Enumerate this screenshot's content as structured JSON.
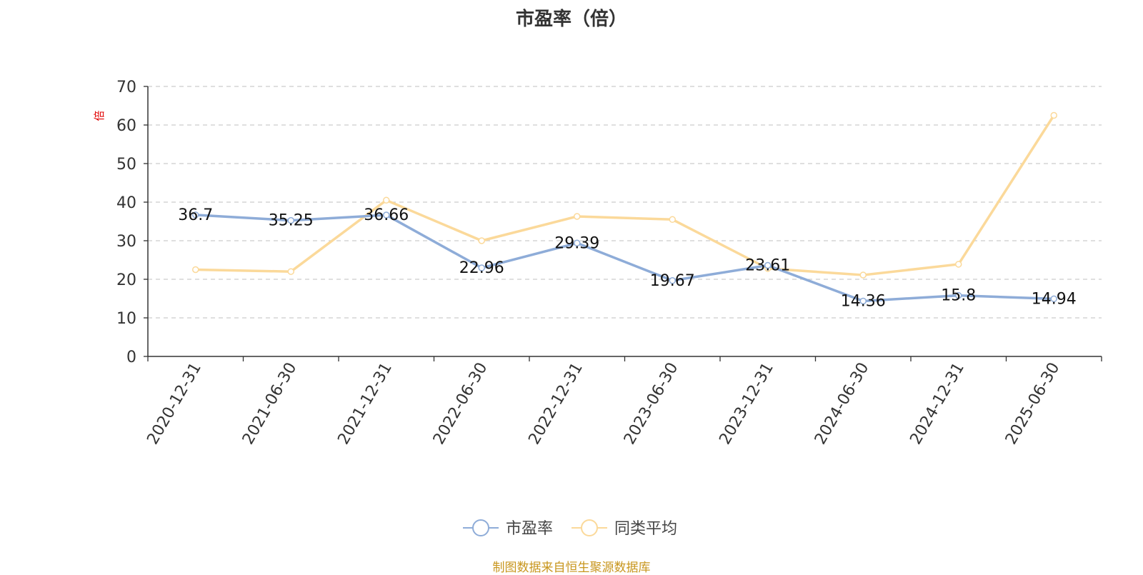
{
  "title": "市盈率（倍）",
  "source_note": "制图数据来自恒生聚源数据库",
  "chart_data": {
    "type": "line",
    "title": "市盈率（倍）",
    "ylabel": "倍",
    "xlabel": "",
    "ylim": [
      0,
      70
    ],
    "yticks": [
      0,
      10,
      20,
      30,
      40,
      50,
      60,
      70
    ],
    "grid": true,
    "legend_position": "bottom",
    "categories": [
      "2020-12-31",
      "2021-06-30",
      "2021-12-31",
      "2022-06-30",
      "2022-12-31",
      "2023-06-30",
      "2023-12-31",
      "2024-06-30",
      "2024-12-31",
      "2025-06-30"
    ],
    "series": [
      {
        "name": "市盈率",
        "color": "#8eacd8",
        "values": [
          36.7,
          35.25,
          36.66,
          22.96,
          29.39,
          19.67,
          23.61,
          14.36,
          15.8,
          14.94
        ],
        "labels": [
          "36.7",
          "35.25",
          "36.66",
          "22.96",
          "29.39",
          "19.67",
          "23.61",
          "14.36",
          "15.8",
          "14.94"
        ]
      },
      {
        "name": "同类平均",
        "color": "#fbd99a",
        "values": [
          22.5,
          22.0,
          40.5,
          30.0,
          36.3,
          35.5,
          22.8,
          21.1,
          23.9,
          62.5
        ]
      }
    ]
  },
  "colors": {
    "axis": "#333333",
    "grid": "#cccccc",
    "unit_label": "#e00000",
    "source": "#c8961e"
  }
}
